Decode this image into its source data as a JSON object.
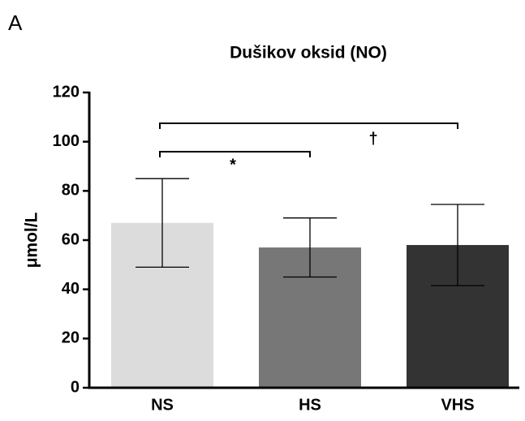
{
  "chart_data": {
    "type": "bar",
    "panel_label": "A",
    "title": "Dušikov oksid (NO)",
    "y_label": "μmol/L",
    "categories": [
      "NS",
      "HS",
      "VHS"
    ],
    "values": [
      67,
      57,
      58
    ],
    "errors": [
      18,
      12,
      16.5
    ],
    "colors": [
      "#dcdcdc",
      "#777777",
      "#333333"
    ],
    "ylim": [
      0,
      120
    ],
    "yticks": [
      0,
      20,
      40,
      60,
      80,
      100,
      120
    ],
    "annotations": [
      "*",
      "†"
    ]
  }
}
